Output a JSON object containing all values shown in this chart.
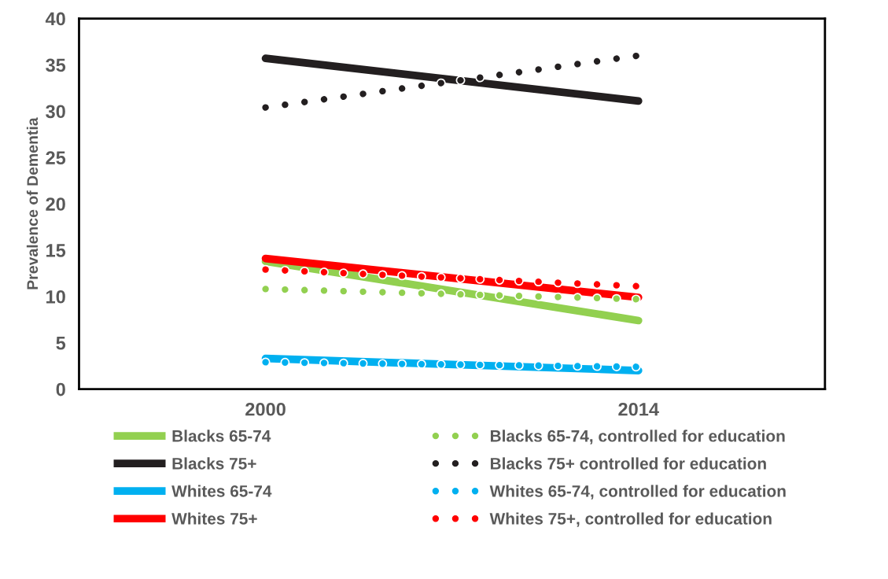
{
  "chart_data": {
    "type": "line",
    "ylabel": "Prevalence of Dementia",
    "categories": [
      "2000",
      "2014"
    ],
    "series": [
      {
        "name": "Blacks 65-74",
        "color": "#92d050",
        "values": [
          13.8,
          7.4
        ],
        "line_style": "solid"
      },
      {
        "name": "Blacks 65-74, controlled for education",
        "color": "#92d050",
        "values": [
          10.8,
          9.7
        ],
        "line_style": "dotted"
      },
      {
        "name": "Blacks 75+",
        "color": "#231f20",
        "values": [
          35.7,
          31.1
        ],
        "line_style": "solid"
      },
      {
        "name": "Blacks 75+ controlled for education",
        "color": "#231f20",
        "values": [
          30.4,
          36.0
        ],
        "line_style": "dotted"
      },
      {
        "name": "Whites 65-74",
        "color": "#00b0f0",
        "values": [
          3.3,
          2.0
        ],
        "line_style": "solid"
      },
      {
        "name": "Whites 65-74, controlled for education",
        "color": "#00b0f0",
        "values": [
          2.9,
          2.4
        ],
        "line_style": "dotted"
      },
      {
        "name": "Whites 75+",
        "color": "#ff0000",
        "values": [
          14.1,
          9.9
        ],
        "line_style": "solid"
      },
      {
        "name": "Whites 75+, controlled for education",
        "color": "#ff0000",
        "values": [
          12.9,
          11.1
        ],
        "line_style": "dotted"
      }
    ],
    "ylim": [
      0,
      40
    ],
    "yticks": [
      0,
      5,
      10,
      15,
      20,
      25,
      30,
      35,
      40
    ],
    "grid": false,
    "legend": "bottom",
    "marker": "none"
  }
}
